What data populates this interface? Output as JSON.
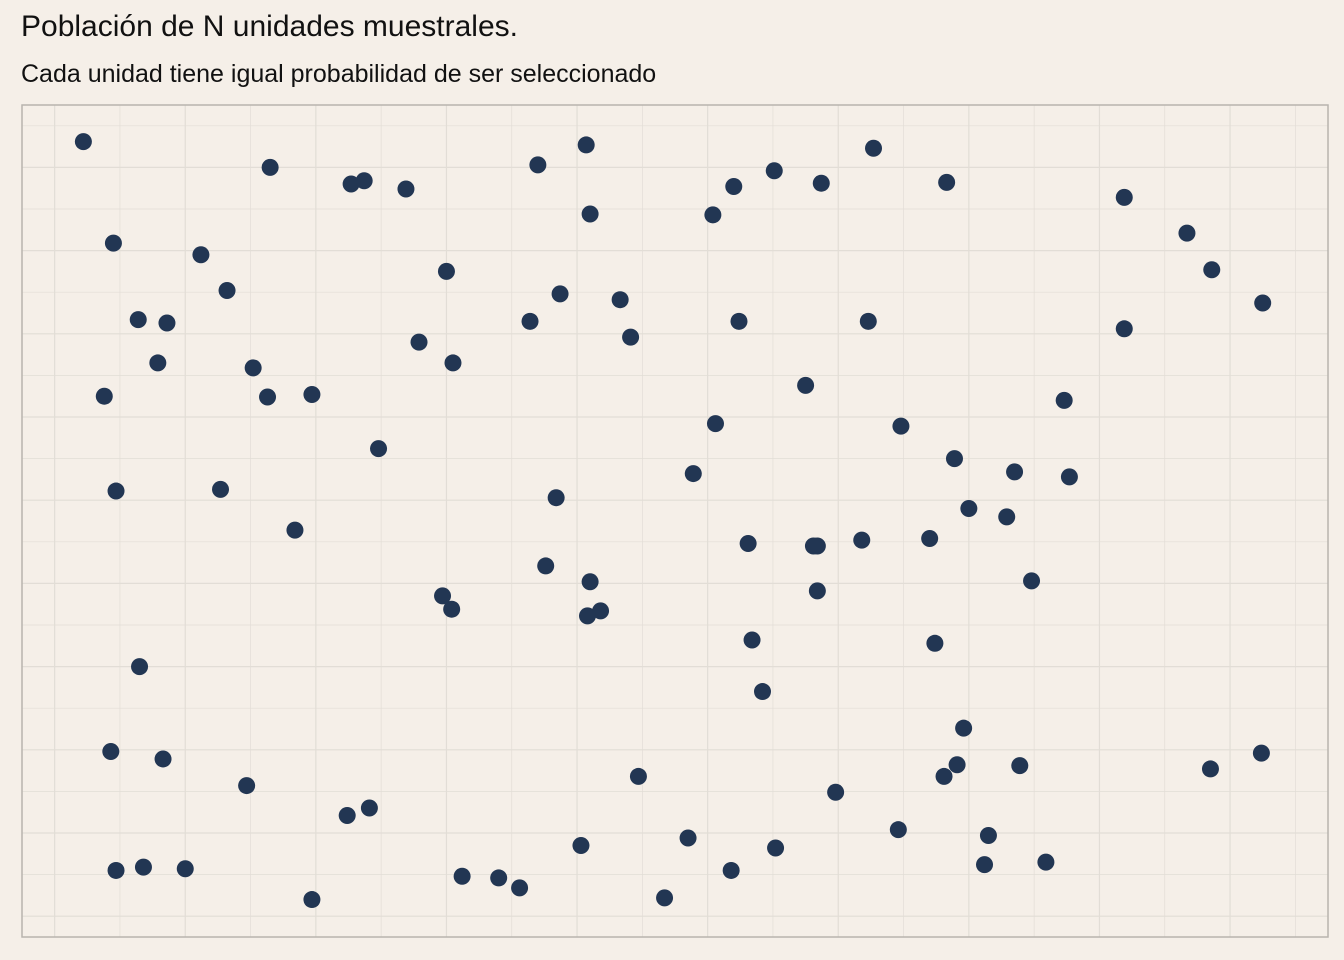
{
  "chart_data": {
    "type": "scatter",
    "title": "Población de N unidades muestrales.",
    "subtitle": "Cada unidad tiene igual probabilidad de ser seleccionado",
    "xlabel": "",
    "ylabel": "",
    "xlim": [
      0,
      100
    ],
    "ylim": [
      0,
      100
    ],
    "grid": true,
    "axis_ticks_shown": false,
    "point_color": "#223653",
    "panel_background": "#f5efe8",
    "grid_color": "#e2ddd6",
    "points": [
      {
        "x": 4.7,
        "y": 95.6
      },
      {
        "x": 7.0,
        "y": 83.4
      },
      {
        "x": 6.3,
        "y": 65.0
      },
      {
        "x": 7.2,
        "y": 53.6
      },
      {
        "x": 6.8,
        "y": 22.3
      },
      {
        "x": 7.2,
        "y": 8.0
      },
      {
        "x": 8.9,
        "y": 74.2
      },
      {
        "x": 10.4,
        "y": 69.0
      },
      {
        "x": 9.0,
        "y": 32.5
      },
      {
        "x": 9.3,
        "y": 8.4
      },
      {
        "x": 11.1,
        "y": 73.8
      },
      {
        "x": 10.8,
        "y": 21.4
      },
      {
        "x": 12.5,
        "y": 8.2
      },
      {
        "x": 13.7,
        "y": 82.0
      },
      {
        "x": 15.7,
        "y": 77.7
      },
      {
        "x": 15.2,
        "y": 53.8
      },
      {
        "x": 17.7,
        "y": 68.4
      },
      {
        "x": 18.8,
        "y": 64.9
      },
      {
        "x": 17.2,
        "y": 18.2
      },
      {
        "x": 19.0,
        "y": 92.5
      },
      {
        "x": 20.9,
        "y": 48.9
      },
      {
        "x": 22.2,
        "y": 65.2
      },
      {
        "x": 22.2,
        "y": 4.5
      },
      {
        "x": 25.2,
        "y": 90.5
      },
      {
        "x": 26.2,
        "y": 90.9
      },
      {
        "x": 24.9,
        "y": 14.6
      },
      {
        "x": 26.6,
        "y": 15.5
      },
      {
        "x": 27.3,
        "y": 58.7
      },
      {
        "x": 29.4,
        "y": 89.9
      },
      {
        "x": 30.4,
        "y": 71.5
      },
      {
        "x": 32.5,
        "y": 80.0
      },
      {
        "x": 33.0,
        "y": 69.0
      },
      {
        "x": 32.2,
        "y": 41.0
      },
      {
        "x": 32.9,
        "y": 39.4
      },
      {
        "x": 33.7,
        "y": 7.3
      },
      {
        "x": 36.5,
        "y": 7.1
      },
      {
        "x": 38.1,
        "y": 5.9
      },
      {
        "x": 39.5,
        "y": 92.8
      },
      {
        "x": 38.9,
        "y": 74.0
      },
      {
        "x": 41.2,
        "y": 77.3
      },
      {
        "x": 40.9,
        "y": 52.8
      },
      {
        "x": 40.1,
        "y": 44.6
      },
      {
        "x": 43.2,
        "y": 95.2
      },
      {
        "x": 43.5,
        "y": 86.9
      },
      {
        "x": 43.5,
        "y": 42.7
      },
      {
        "x": 43.3,
        "y": 38.6
      },
      {
        "x": 44.3,
        "y": 39.2
      },
      {
        "x": 45.8,
        "y": 76.6
      },
      {
        "x": 46.6,
        "y": 72.1
      },
      {
        "x": 42.8,
        "y": 11.0
      },
      {
        "x": 47.2,
        "y": 19.3
      },
      {
        "x": 49.2,
        "y": 4.7
      },
      {
        "x": 51.0,
        "y": 11.9
      },
      {
        "x": 51.4,
        "y": 55.7
      },
      {
        "x": 52.9,
        "y": 86.8
      },
      {
        "x": 53.1,
        "y": 61.7
      },
      {
        "x": 54.5,
        "y": 90.2
      },
      {
        "x": 54.9,
        "y": 74.0
      },
      {
        "x": 55.6,
        "y": 47.3
      },
      {
        "x": 55.9,
        "y": 35.7
      },
      {
        "x": 54.3,
        "y": 8.0
      },
      {
        "x": 57.6,
        "y": 92.1
      },
      {
        "x": 56.7,
        "y": 29.5
      },
      {
        "x": 60.0,
        "y": 66.3
      },
      {
        "x": 60.9,
        "y": 47.0
      },
      {
        "x": 61.2,
        "y": 90.6
      },
      {
        "x": 60.6,
        "y": 47.0
      },
      {
        "x": 60.9,
        "y": 41.6
      },
      {
        "x": 57.7,
        "y": 10.7
      },
      {
        "x": 62.3,
        "y": 17.4
      },
      {
        "x": 64.3,
        "y": 47.7
      },
      {
        "x": 64.8,
        "y": 74.0
      },
      {
        "x": 67.3,
        "y": 61.4
      },
      {
        "x": 67.1,
        "y": 12.9
      },
      {
        "x": 65.2,
        "y": 94.8
      },
      {
        "x": 70.8,
        "y": 90.7
      },
      {
        "x": 69.5,
        "y": 47.9
      },
      {
        "x": 71.4,
        "y": 57.5
      },
      {
        "x": 69.9,
        "y": 35.3
      },
      {
        "x": 70.6,
        "y": 19.3
      },
      {
        "x": 71.6,
        "y": 20.7
      },
      {
        "x": 72.1,
        "y": 25.1
      },
      {
        "x": 72.5,
        "y": 51.5
      },
      {
        "x": 74.0,
        "y": 12.2
      },
      {
        "x": 75.4,
        "y": 50.5
      },
      {
        "x": 73.7,
        "y": 8.7
      },
      {
        "x": 77.3,
        "y": 42.8
      },
      {
        "x": 76.0,
        "y": 55.9
      },
      {
        "x": 76.4,
        "y": 20.6
      },
      {
        "x": 79.8,
        "y": 64.5
      },
      {
        "x": 80.2,
        "y": 55.3
      },
      {
        "x": 78.4,
        "y": 9.0
      },
      {
        "x": 84.4,
        "y": 88.9
      },
      {
        "x": 84.4,
        "y": 73.1
      },
      {
        "x": 89.2,
        "y": 84.6
      },
      {
        "x": 91.1,
        "y": 80.2
      },
      {
        "x": 95.0,
        "y": 76.2
      },
      {
        "x": 94.9,
        "y": 22.1
      },
      {
        "x": 91.0,
        "y": 20.2
      }
    ]
  }
}
